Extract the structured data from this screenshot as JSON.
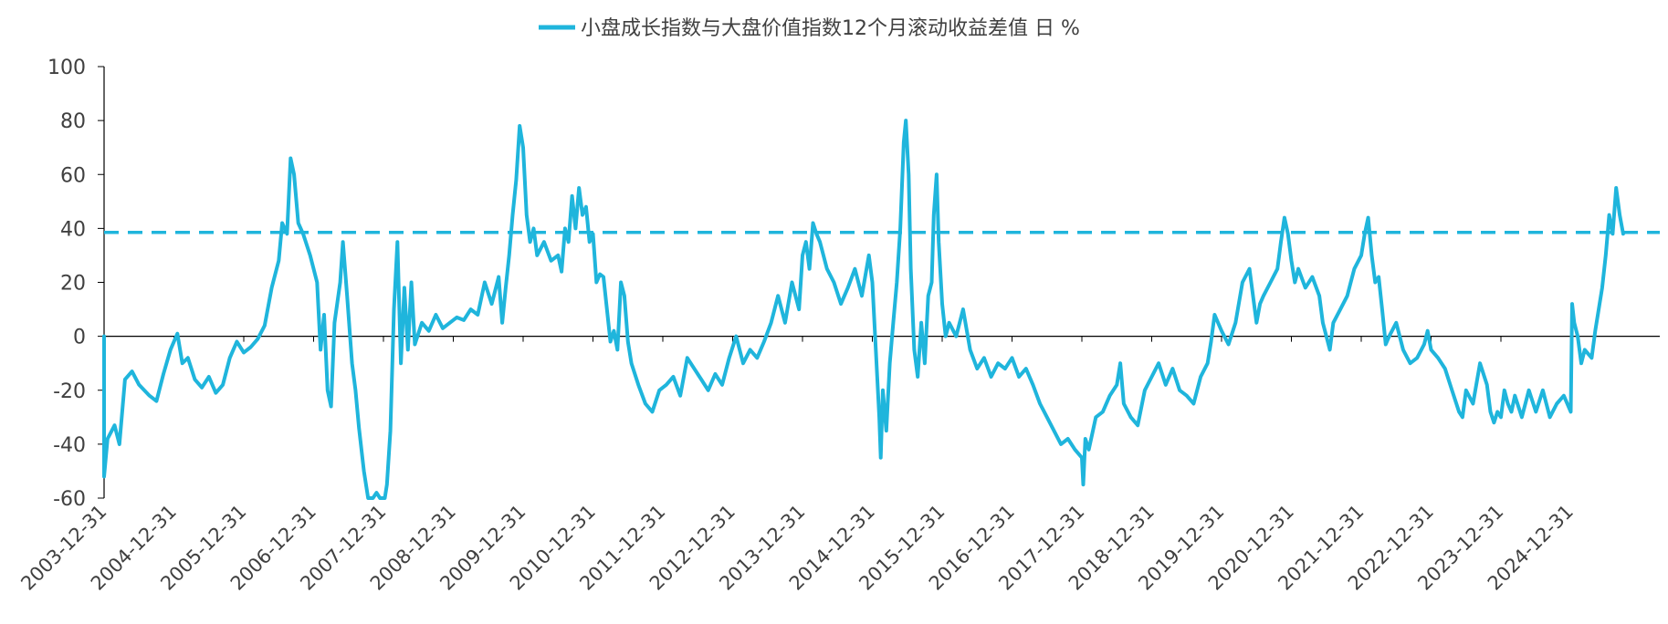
{
  "chart_data": {
    "type": "line",
    "title": "",
    "xlabel": "",
    "ylabel": "",
    "ylim": [
      -60,
      100
    ],
    "y_ticks": [
      100,
      80,
      60,
      40,
      20,
      0,
      -20,
      -40,
      -60
    ],
    "x_ticks": [
      "2003-12-31",
      "2004-12-31",
      "2005-12-31",
      "2006-12-31",
      "2007-12-31",
      "2008-12-31",
      "2009-12-31",
      "2010-12-31",
      "2011-12-31",
      "2012-12-31",
      "2013-12-31",
      "2014-12-31",
      "2015-12-31",
      "2016-12-31",
      "2017-12-31",
      "2018-12-31",
      "2019-12-31",
      "2020-12-31",
      "2021-12-31",
      "2022-12-31",
      "2023-12-31",
      "2024-12-31"
    ],
    "x_range": [
      2004.0,
      2025.8
    ],
    "legend_position": "top-center",
    "series": [
      {
        "name": "小盘成长指数与大盘价值指数12个月滚动收益差值 日 %",
        "color": "#1fb5dc",
        "points": [
          [
            2004.0,
            0
          ],
          [
            2004.0,
            -52
          ],
          [
            2004.05,
            -38
          ],
          [
            2004.15,
            -33
          ],
          [
            2004.22,
            -40
          ],
          [
            2004.3,
            -16
          ],
          [
            2004.4,
            -13
          ],
          [
            2004.5,
            -18
          ],
          [
            2004.65,
            -22
          ],
          [
            2004.75,
            -24
          ],
          [
            2004.85,
            -14
          ],
          [
            2004.95,
            -5
          ],
          [
            2005.05,
            1
          ],
          [
            2005.12,
            -10
          ],
          [
            2005.2,
            -8
          ],
          [
            2005.3,
            -16
          ],
          [
            2005.4,
            -19
          ],
          [
            2005.5,
            -15
          ],
          [
            2005.6,
            -21
          ],
          [
            2005.7,
            -18
          ],
          [
            2005.8,
            -8
          ],
          [
            2005.9,
            -2
          ],
          [
            2006.0,
            -6
          ],
          [
            2006.1,
            -4
          ],
          [
            2006.2,
            -1
          ],
          [
            2006.3,
            4
          ],
          [
            2006.4,
            18
          ],
          [
            2006.5,
            28
          ],
          [
            2006.55,
            42
          ],
          [
            2006.62,
            38
          ],
          [
            2006.67,
            66
          ],
          [
            2006.72,
            60
          ],
          [
            2006.78,
            42
          ],
          [
            2006.85,
            38
          ],
          [
            2006.95,
            30
          ],
          [
            2007.05,
            20
          ],
          [
            2007.1,
            -5
          ],
          [
            2007.15,
            8
          ],
          [
            2007.2,
            -20
          ],
          [
            2007.25,
            -26
          ],
          [
            2007.3,
            5
          ],
          [
            2007.38,
            20
          ],
          [
            2007.42,
            35
          ],
          [
            2007.48,
            15
          ],
          [
            2007.55,
            -10
          ],
          [
            2007.6,
            -20
          ],
          [
            2007.65,
            -34
          ],
          [
            2007.72,
            -50
          ],
          [
            2007.78,
            -60
          ],
          [
            2007.85,
            -60
          ],
          [
            2007.9,
            -58
          ],
          [
            2007.95,
            -60
          ],
          [
            2008.02,
            -60
          ],
          [
            2008.05,
            -55
          ],
          [
            2008.1,
            -35
          ],
          [
            2008.15,
            10
          ],
          [
            2008.2,
            35
          ],
          [
            2008.25,
            -10
          ],
          [
            2008.3,
            18
          ],
          [
            2008.35,
            -5
          ],
          [
            2008.4,
            20
          ],
          [
            2008.45,
            -3
          ],
          [
            2008.55,
            5
          ],
          [
            2008.65,
            2
          ],
          [
            2008.75,
            8
          ],
          [
            2008.85,
            3
          ],
          [
            2008.95,
            5
          ],
          [
            2009.05,
            7
          ],
          [
            2009.15,
            6
          ],
          [
            2009.25,
            10
          ],
          [
            2009.35,
            8
          ],
          [
            2009.45,
            20
          ],
          [
            2009.55,
            12
          ],
          [
            2009.65,
            22
          ],
          [
            2009.7,
            5
          ],
          [
            2009.75,
            18
          ],
          [
            2009.8,
            30
          ],
          [
            2009.85,
            45
          ],
          [
            2009.9,
            58
          ],
          [
            2009.95,
            78
          ],
          [
            2010.0,
            70
          ],
          [
            2010.05,
            45
          ],
          [
            2010.1,
            35
          ],
          [
            2010.15,
            40
          ],
          [
            2010.2,
            30
          ],
          [
            2010.3,
            35
          ],
          [
            2010.4,
            28
          ],
          [
            2010.5,
            30
          ],
          [
            2010.55,
            24
          ],
          [
            2010.6,
            40
          ],
          [
            2010.65,
            35
          ],
          [
            2010.7,
            52
          ],
          [
            2010.75,
            40
          ],
          [
            2010.8,
            55
          ],
          [
            2010.85,
            45
          ],
          [
            2010.9,
            48
          ],
          [
            2010.95,
            35
          ],
          [
            2011.0,
            38
          ],
          [
            2011.05,
            20
          ],
          [
            2011.1,
            23
          ],
          [
            2011.15,
            22
          ],
          [
            2011.2,
            10
          ],
          [
            2011.25,
            -2
          ],
          [
            2011.3,
            2
          ],
          [
            2011.35,
            -5
          ],
          [
            2011.4,
            20
          ],
          [
            2011.45,
            15
          ],
          [
            2011.5,
            -2
          ],
          [
            2011.55,
            -10
          ],
          [
            2011.65,
            -18
          ],
          [
            2011.75,
            -25
          ],
          [
            2011.85,
            -28
          ],
          [
            2011.95,
            -20
          ],
          [
            2012.05,
            -18
          ],
          [
            2012.15,
            -15
          ],
          [
            2012.25,
            -22
          ],
          [
            2012.35,
            -8
          ],
          [
            2012.45,
            -12
          ],
          [
            2012.55,
            -16
          ],
          [
            2012.65,
            -20
          ],
          [
            2012.75,
            -14
          ],
          [
            2012.85,
            -18
          ],
          [
            2012.95,
            -8
          ],
          [
            2013.05,
            0
          ],
          [
            2013.15,
            -10
          ],
          [
            2013.25,
            -5
          ],
          [
            2013.35,
            -8
          ],
          [
            2013.45,
            -2
          ],
          [
            2013.55,
            5
          ],
          [
            2013.65,
            15
          ],
          [
            2013.75,
            5
          ],
          [
            2013.85,
            20
          ],
          [
            2013.95,
            10
          ],
          [
            2014.0,
            30
          ],
          [
            2014.05,
            35
          ],
          [
            2014.1,
            25
          ],
          [
            2014.15,
            42
          ],
          [
            2014.2,
            38
          ],
          [
            2014.25,
            35
          ],
          [
            2014.35,
            25
          ],
          [
            2014.45,
            20
          ],
          [
            2014.55,
            12
          ],
          [
            2014.65,
            18
          ],
          [
            2014.75,
            25
          ],
          [
            2014.85,
            15
          ],
          [
            2014.95,
            30
          ],
          [
            2015.0,
            20
          ],
          [
            2015.05,
            -5
          ],
          [
            2015.1,
            -30
          ],
          [
            2015.12,
            -45
          ],
          [
            2015.15,
            -20
          ],
          [
            2015.2,
            -35
          ],
          [
            2015.25,
            -10
          ],
          [
            2015.3,
            5
          ],
          [
            2015.35,
            20
          ],
          [
            2015.4,
            40
          ],
          [
            2015.45,
            72
          ],
          [
            2015.48,
            80
          ],
          [
            2015.52,
            60
          ],
          [
            2015.55,
            25
          ],
          [
            2015.6,
            -5
          ],
          [
            2015.65,
            -15
          ],
          [
            2015.7,
            5
          ],
          [
            2015.75,
            -10
          ],
          [
            2015.8,
            15
          ],
          [
            2015.85,
            20
          ],
          [
            2015.88,
            45
          ],
          [
            2015.92,
            60
          ],
          [
            2015.95,
            35
          ],
          [
            2016.0,
            12
          ],
          [
            2016.05,
            0
          ],
          [
            2016.1,
            5
          ],
          [
            2016.2,
            0
          ],
          [
            2016.3,
            10
          ],
          [
            2016.4,
            -5
          ],
          [
            2016.5,
            -12
          ],
          [
            2016.6,
            -8
          ],
          [
            2016.7,
            -15
          ],
          [
            2016.8,
            -10
          ],
          [
            2016.9,
            -12
          ],
          [
            2017.0,
            -8
          ],
          [
            2017.1,
            -15
          ],
          [
            2017.2,
            -12
          ],
          [
            2017.3,
            -18
          ],
          [
            2017.4,
            -25
          ],
          [
            2017.5,
            -30
          ],
          [
            2017.6,
            -35
          ],
          [
            2017.7,
            -40
          ],
          [
            2017.8,
            -38
          ],
          [
            2017.9,
            -42
          ],
          [
            2018.0,
            -45
          ],
          [
            2018.02,
            -55
          ],
          [
            2018.05,
            -38
          ],
          [
            2018.1,
            -42
          ],
          [
            2018.2,
            -30
          ],
          [
            2018.3,
            -28
          ],
          [
            2018.4,
            -22
          ],
          [
            2018.5,
            -18
          ],
          [
            2018.55,
            -10
          ],
          [
            2018.6,
            -25
          ],
          [
            2018.7,
            -30
          ],
          [
            2018.8,
            -33
          ],
          [
            2018.9,
            -20
          ],
          [
            2019.0,
            -15
          ],
          [
            2019.1,
            -10
          ],
          [
            2019.2,
            -18
          ],
          [
            2019.3,
            -12
          ],
          [
            2019.4,
            -20
          ],
          [
            2019.5,
            -22
          ],
          [
            2019.6,
            -25
          ],
          [
            2019.7,
            -15
          ],
          [
            2019.8,
            -10
          ],
          [
            2019.85,
            -2
          ],
          [
            2019.9,
            8
          ],
          [
            2020.0,
            2
          ],
          [
            2020.1,
            -3
          ],
          [
            2020.2,
            5
          ],
          [
            2020.3,
            20
          ],
          [
            2020.4,
            25
          ],
          [
            2020.5,
            5
          ],
          [
            2020.55,
            12
          ],
          [
            2020.6,
            15
          ],
          [
            2020.7,
            20
          ],
          [
            2020.8,
            25
          ],
          [
            2020.85,
            35
          ],
          [
            2020.9,
            44
          ],
          [
            2020.95,
            38
          ],
          [
            2021.0,
            28
          ],
          [
            2021.05,
            20
          ],
          [
            2021.1,
            25
          ],
          [
            2021.2,
            18
          ],
          [
            2021.3,
            22
          ],
          [
            2021.4,
            15
          ],
          [
            2021.45,
            5
          ],
          [
            2021.5,
            0
          ],
          [
            2021.55,
            -5
          ],
          [
            2021.6,
            5
          ],
          [
            2021.7,
            10
          ],
          [
            2021.8,
            15
          ],
          [
            2021.85,
            20
          ],
          [
            2021.9,
            25
          ],
          [
            2022.0,
            30
          ],
          [
            2022.05,
            38
          ],
          [
            2022.1,
            44
          ],
          [
            2022.15,
            30
          ],
          [
            2022.2,
            20
          ],
          [
            2022.25,
            22
          ],
          [
            2022.3,
            10
          ],
          [
            2022.35,
            -3
          ],
          [
            2022.4,
            0
          ],
          [
            2022.5,
            5
          ],
          [
            2022.6,
            -5
          ],
          [
            2022.7,
            -10
          ],
          [
            2022.8,
            -8
          ],
          [
            2022.9,
            -3
          ],
          [
            2022.95,
            2
          ],
          [
            2023.0,
            -5
          ],
          [
            2023.1,
            -8
          ],
          [
            2023.2,
            -12
          ],
          [
            2023.3,
            -20
          ],
          [
            2023.4,
            -28
          ],
          [
            2023.45,
            -30
          ],
          [
            2023.5,
            -20
          ],
          [
            2023.6,
            -25
          ],
          [
            2023.7,
            -10
          ],
          [
            2023.8,
            -18
          ],
          [
            2023.85,
            -28
          ],
          [
            2023.9,
            -32
          ],
          [
            2023.95,
            -28
          ],
          [
            2024.0,
            -30
          ],
          [
            2024.05,
            -20
          ],
          [
            2024.1,
            -25
          ],
          [
            2024.15,
            -28
          ],
          [
            2024.2,
            -22
          ],
          [
            2024.3,
            -30
          ],
          [
            2024.4,
            -20
          ],
          [
            2024.5,
            -28
          ],
          [
            2024.6,
            -20
          ],
          [
            2024.7,
            -30
          ],
          [
            2024.8,
            -25
          ],
          [
            2024.9,
            -22
          ],
          [
            2025.0,
            -28
          ],
          [
            2025.02,
            12
          ],
          [
            2025.05,
            5
          ],
          [
            2025.1,
            0
          ],
          [
            2025.15,
            -10
          ],
          [
            2025.2,
            -5
          ],
          [
            2025.3,
            -8
          ],
          [
            2025.35,
            2
          ],
          [
            2025.45,
            18
          ],
          [
            2025.5,
            30
          ],
          [
            2025.55,
            45
          ],
          [
            2025.6,
            38
          ],
          [
            2025.65,
            55
          ],
          [
            2025.7,
            45
          ],
          [
            2025.75,
            38
          ]
        ]
      }
    ],
    "reference_line": {
      "y": 38.5,
      "color": "#1fb5dc",
      "style": "dashed"
    }
  },
  "colors": {
    "series": "#1fb5dc",
    "axis": "#000000",
    "text": "#404040"
  }
}
